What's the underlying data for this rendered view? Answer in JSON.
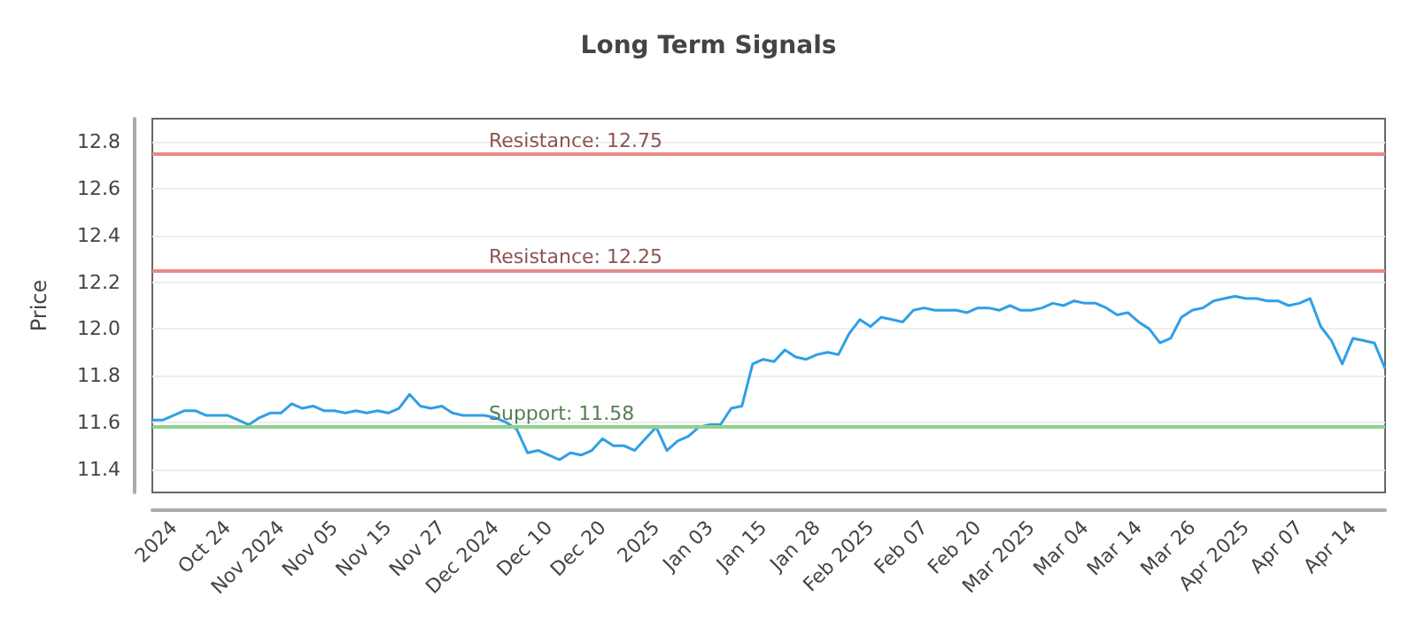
{
  "chart_data": {
    "type": "line",
    "title": "Long Term Signals",
    "ylabel": "Price",
    "categories": [
      null,
      null,
      "2024",
      null,
      null,
      null,
      null,
      "Oct 24",
      null,
      null,
      null,
      null,
      "Nov 2024",
      null,
      null,
      null,
      null,
      "Nov 05",
      null,
      null,
      null,
      null,
      "Nov 15",
      null,
      null,
      null,
      null,
      "Nov 27",
      null,
      null,
      null,
      null,
      "Dec 2024",
      null,
      null,
      null,
      null,
      "Dec 10",
      null,
      null,
      null,
      null,
      "Dec 20",
      null,
      null,
      null,
      null,
      "2025",
      null,
      null,
      null,
      null,
      "Jan 03",
      null,
      null,
      null,
      null,
      "Jan 15",
      null,
      null,
      null,
      null,
      "Jan 28",
      null,
      null,
      null,
      null,
      "Feb 2025",
      null,
      null,
      null,
      null,
      "Feb 07",
      null,
      null,
      null,
      null,
      "Feb 20",
      null,
      null,
      null,
      null,
      "Mar 2025",
      null,
      null,
      null,
      null,
      "Mar 04",
      null,
      null,
      null,
      null,
      "Mar 14",
      null,
      null,
      null,
      null,
      "Mar 26",
      null,
      null,
      null,
      null,
      "Apr 2025",
      null,
      null,
      null,
      null,
      "Apr 07",
      null,
      null,
      null,
      null,
      "Apr 14",
      null,
      null,
      null
    ],
    "series": [
      {
        "color": "#2f9fe6",
        "values": [
          11.61,
          11.61,
          11.63,
          11.65,
          11.65,
          11.63,
          11.63,
          11.63,
          11.61,
          11.59,
          11.62,
          11.64,
          11.64,
          11.68,
          11.66,
          11.67,
          11.65,
          11.65,
          11.64,
          11.65,
          11.64,
          11.65,
          11.64,
          11.66,
          11.72,
          11.67,
          11.66,
          11.67,
          11.64,
          11.63,
          11.63,
          11.63,
          11.62,
          11.6,
          11.57,
          11.47,
          11.48,
          11.46,
          11.44,
          11.47,
          11.46,
          11.48,
          11.53,
          11.5,
          11.5,
          11.48,
          11.53,
          11.58,
          11.48,
          11.52,
          11.54,
          11.58,
          11.59,
          11.59,
          11.66,
          11.67,
          11.85,
          11.87,
          11.86,
          11.91,
          11.88,
          11.87,
          11.89,
          11.9,
          11.89,
          11.98,
          12.04,
          12.01,
          12.05,
          12.04,
          12.03,
          12.08,
          12.09,
          12.08,
          12.08,
          12.08,
          12.07,
          12.09,
          12.09,
          12.08,
          12.1,
          12.08,
          12.08,
          12.09,
          12.11,
          12.1,
          12.12,
          12.11,
          12.11,
          12.09,
          12.06,
          12.07,
          12.03,
          12.0,
          11.94,
          11.96,
          12.05,
          12.08,
          12.09,
          12.12,
          12.13,
          12.14,
          12.13,
          12.13,
          12.12,
          12.12,
          12.1,
          12.11,
          12.13,
          12.01,
          11.95,
          11.85,
          11.96,
          11.95,
          11.94,
          11.83
        ]
      }
    ],
    "ylim": [
      11.3,
      12.9
    ],
    "yticks": [
      11.4,
      11.6,
      11.8,
      {
        "value": 12,
        "label": "12.0"
      },
      12.2,
      12.4,
      12.6,
      12.8
    ],
    "grid": "y",
    "marker": "none",
    "line_style": "solid",
    "ref_lines": [
      {
        "axis": "y",
        "value": 12.75,
        "label": "Resistance: 12.75",
        "color": "#e88a8a"
      },
      {
        "axis": "y",
        "value": 12.25,
        "label": "Resistance: 12.25",
        "color": "#e88a8a"
      },
      {
        "axis": "y",
        "value": 11.58,
        "label": "Support: 11.58",
        "color": "#8fd18f"
      }
    ]
  }
}
